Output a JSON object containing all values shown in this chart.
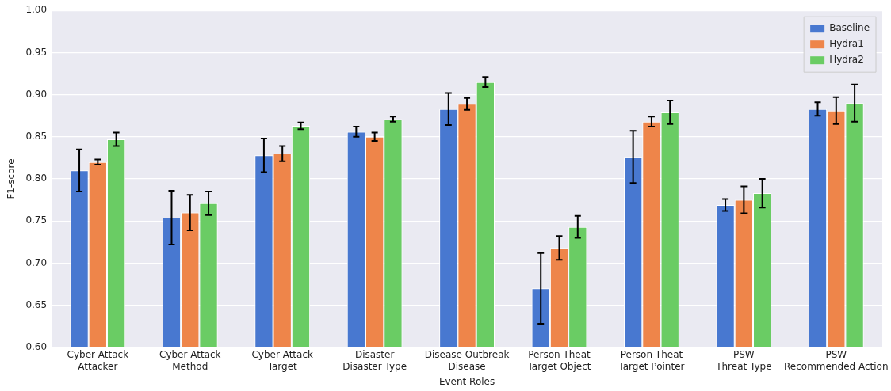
{
  "chart_data": {
    "type": "bar",
    "xlabel": "Event Roles",
    "ylabel": "F1-score",
    "categories": [
      "Cyber Attack\nAttacker",
      "Cyber Attack\nMethod",
      "Cyber Attack\nTarget",
      "Disaster\nDisaster Type",
      "Disease Outbreak\nDisease",
      "Person Theat\nTarget Object",
      "Person Theat\nTarget Pointer",
      "PSW\nThreat Type",
      "PSW\nRecommended Action"
    ],
    "series": [
      {
        "name": "Baseline",
        "color": "#4878d0",
        "values": [
          0.81,
          0.754,
          0.828,
          0.856,
          0.883,
          0.67,
          0.826,
          0.769,
          0.883
        ],
        "errors": [
          0.025,
          0.032,
          0.02,
          0.006,
          0.019,
          0.042,
          0.031,
          0.007,
          0.008
        ]
      },
      {
        "name": "Hydra1",
        "color": "#ee854a",
        "values": [
          0.82,
          0.76,
          0.83,
          0.85,
          0.889,
          0.718,
          0.868,
          0.775,
          0.881
        ],
        "errors": [
          0.003,
          0.021,
          0.009,
          0.005,
          0.007,
          0.014,
          0.006,
          0.016,
          0.016
        ]
      },
      {
        "name": "Hydra2",
        "color": "#6acc64",
        "values": [
          0.847,
          0.771,
          0.863,
          0.871,
          0.915,
          0.743,
          0.879,
          0.783,
          0.89
        ],
        "errors": [
          0.008,
          0.014,
          0.004,
          0.003,
          0.006,
          0.013,
          0.014,
          0.017,
          0.022
        ]
      }
    ],
    "ylim": [
      0.6,
      1.0
    ],
    "yticks": [
      {
        "value": 0.6,
        "label": "0.60"
      },
      0.65,
      {
        "value": 0.7,
        "label": "0.70"
      },
      0.75,
      {
        "value": 0.8,
        "label": "0.80"
      },
      0.85,
      {
        "value": 0.9,
        "label": "0.90"
      },
      0.95,
      {
        "value": 1.0,
        "label": "1.00"
      }
    ],
    "grid": "y",
    "legend": "top right"
  }
}
